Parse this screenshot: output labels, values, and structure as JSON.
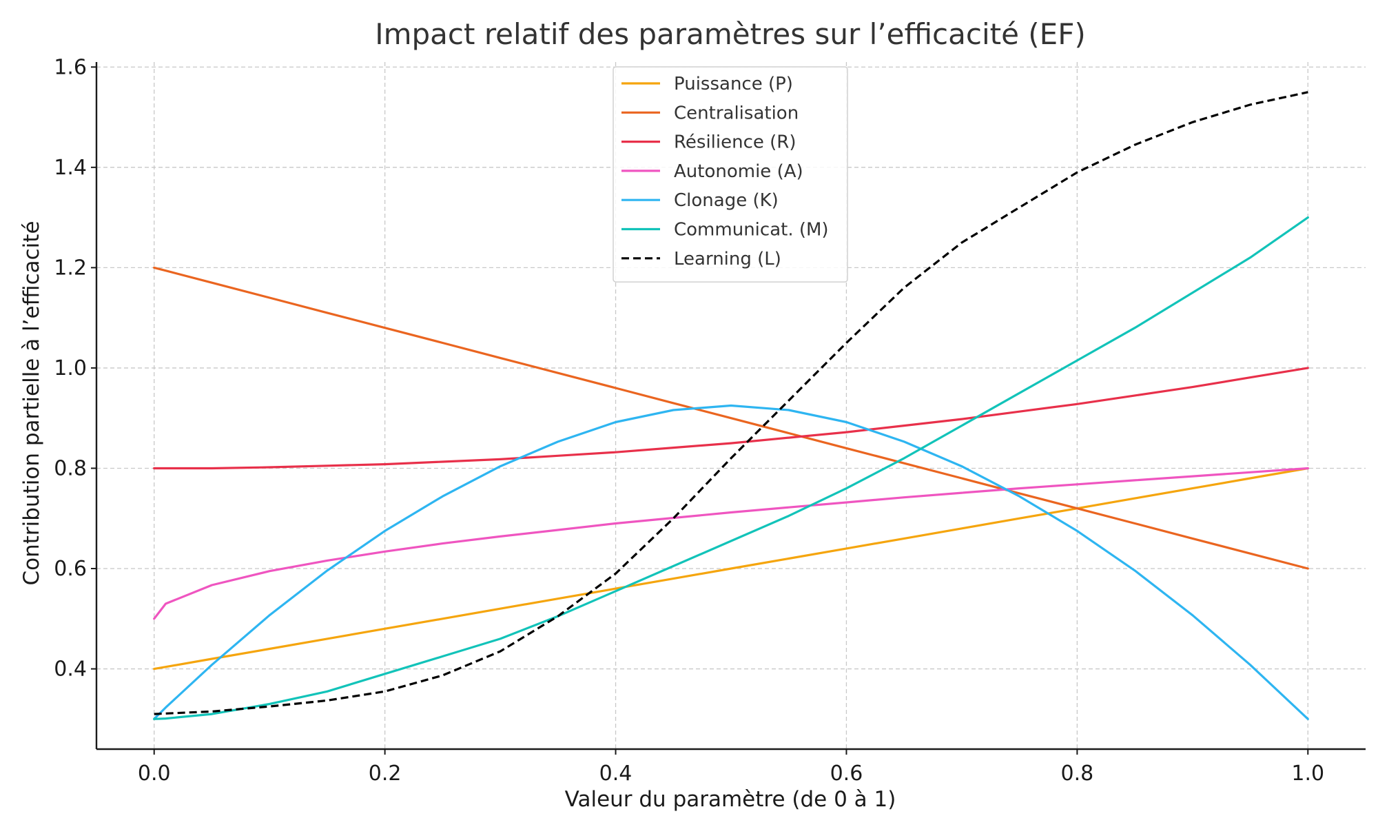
{
  "chart_data": {
    "type": "line",
    "title": "Impact relatif des paramètres sur l’efficacité (EF)",
    "xlabel": "Valeur du paramètre (de 0 à 1)",
    "ylabel": "Contribution partielle à l’efficacité",
    "xlim": [
      -0.05,
      1.05
    ],
    "ylim": [
      0.24,
      1.61
    ],
    "xticks": [
      0.0,
      0.2,
      0.4,
      0.6,
      0.8,
      1.0
    ],
    "xtick_labels": [
      "0.0",
      "0.2",
      "0.4",
      "0.6",
      "0.8",
      "1.0"
    ],
    "yticks": [
      0.4,
      0.6,
      0.8,
      1.0,
      1.2,
      1.4,
      1.6
    ],
    "ytick_labels": [
      "0.4",
      "0.6",
      "0.8",
      "1.0",
      "1.2",
      "1.4",
      "1.6"
    ],
    "grid": true,
    "legend_position": "top-center",
    "x": [
      0.0,
      0.01,
      0.05,
      0.1,
      0.15,
      0.2,
      0.25,
      0.3,
      0.35,
      0.4,
      0.45,
      0.5,
      0.55,
      0.6,
      0.65,
      0.7,
      0.75,
      0.8,
      0.85,
      0.9,
      0.95,
      1.0
    ],
    "series": [
      {
        "name": "Puissance (P)",
        "color": "#f5a50e",
        "dash": "solid",
        "values": [
          0.4,
          0.404,
          0.42,
          0.44,
          0.46,
          0.48,
          0.5,
          0.52,
          0.54,
          0.56,
          0.58,
          0.6,
          0.62,
          0.64,
          0.66,
          0.68,
          0.7,
          0.72,
          0.74,
          0.76,
          0.78,
          0.8
        ]
      },
      {
        "name": "Centralisation",
        "color": "#ea6520",
        "dash": "solid",
        "values": [
          1.2,
          1.194,
          1.17,
          1.14,
          1.11,
          1.08,
          1.05,
          1.02,
          0.99,
          0.96,
          0.93,
          0.9,
          0.87,
          0.84,
          0.81,
          0.78,
          0.75,
          0.72,
          0.69,
          0.66,
          0.63,
          0.6
        ]
      },
      {
        "name": "Résilience (R)",
        "color": "#e8304a",
        "dash": "solid",
        "values": [
          0.8,
          0.8,
          0.8,
          0.802,
          0.805,
          0.808,
          0.813,
          0.818,
          0.825,
          0.832,
          0.841,
          0.85,
          0.861,
          0.872,
          0.885,
          0.898,
          0.913,
          0.928,
          0.945,
          0.962,
          0.981,
          1.0
        ]
      },
      {
        "name": "Autonomie (A)",
        "color": "#ef55c0",
        "dash": "solid",
        "values": [
          0.5,
          0.53,
          0.567,
          0.595,
          0.616,
          0.634,
          0.65,
          0.664,
          0.677,
          0.69,
          0.701,
          0.712,
          0.722,
          0.732,
          0.742,
          0.751,
          0.76,
          0.768,
          0.776,
          0.784,
          0.792,
          0.8
        ]
      },
      {
        "name": "Clonage (K)",
        "color": "#2eb5f1",
        "dash": "solid",
        "values": [
          0.3,
          0.323,
          0.408,
          0.507,
          0.596,
          0.675,
          0.744,
          0.804,
          0.853,
          0.892,
          0.916,
          0.925,
          0.916,
          0.892,
          0.853,
          0.804,
          0.744,
          0.675,
          0.596,
          0.507,
          0.408,
          0.3
        ]
      },
      {
        "name": "Communicat. (M)",
        "color": "#12c3b9",
        "dash": "solid",
        "values": [
          0.3,
          0.301,
          0.31,
          0.33,
          0.355,
          0.39,
          0.425,
          0.46,
          0.505,
          0.555,
          0.605,
          0.655,
          0.705,
          0.76,
          0.82,
          0.885,
          0.95,
          1.015,
          1.08,
          1.15,
          1.22,
          1.3
        ]
      },
      {
        "name": "Learning (L)",
        "color": "#000000",
        "dash": "dashed",
        "values": [
          0.31,
          0.311,
          0.315,
          0.325,
          0.337,
          0.355,
          0.387,
          0.435,
          0.505,
          0.59,
          0.7,
          0.82,
          0.935,
          1.05,
          1.16,
          1.25,
          1.32,
          1.39,
          1.445,
          1.49,
          1.525,
          1.55
        ]
      }
    ]
  }
}
